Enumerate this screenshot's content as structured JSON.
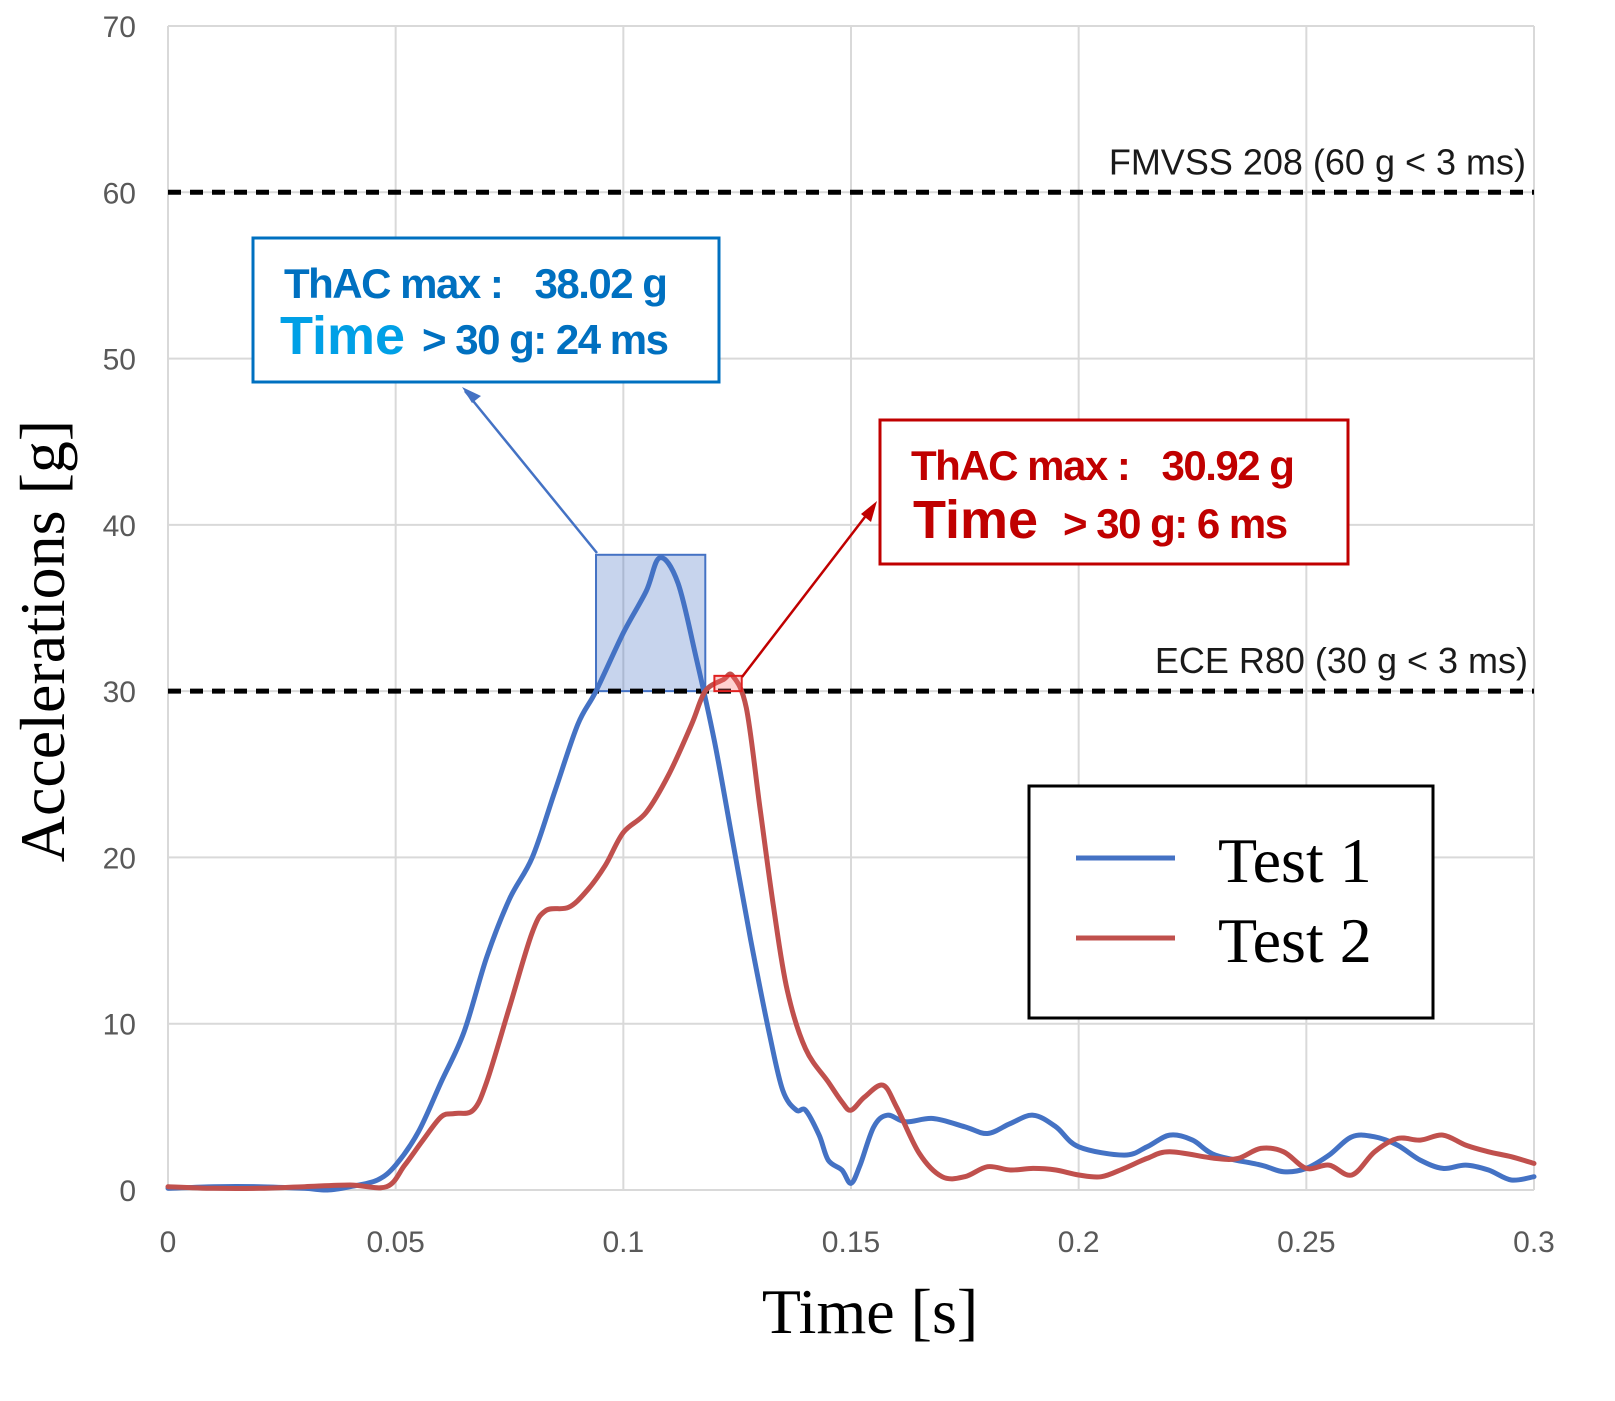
{
  "chart_data": {
    "type": "line",
    "title": "",
    "xlabel": "Time [s]",
    "ylabel": "Accelerations [g]",
    "xlim": [
      0,
      0.3
    ],
    "ylim": [
      0,
      70
    ],
    "xticks": [
      "0",
      "0.05",
      "0.1",
      "0.15",
      "0.2",
      "0.25",
      "0.3"
    ],
    "yticks": [
      "0",
      "10",
      "20",
      "30",
      "40",
      "50",
      "60",
      "70"
    ],
    "grid": true,
    "legend_position": "lower-right",
    "colors": {
      "test1": "#4472c4",
      "test2": "#c0504d",
      "blue_text": "#0070c0",
      "blue_text_light": "#00b0f0",
      "red_text": "#c00000"
    },
    "reference_lines": [
      {
        "name": "fmvss",
        "y": 60,
        "label": "FMVSS 208 (60 g < 3 ms)"
      },
      {
        "name": "ece",
        "y": 30,
        "label": "ECE R80 (30 g <  3 ms)"
      }
    ],
    "series": [
      {
        "name": "Test 1",
        "points": [
          [
            0,
            0.1
          ],
          [
            0.01,
            0.2
          ],
          [
            0.02,
            0.2
          ],
          [
            0.03,
            0.1
          ],
          [
            0.035,
            0
          ],
          [
            0.04,
            0.2
          ],
          [
            0.046,
            0.6
          ],
          [
            0.05,
            1.5
          ],
          [
            0.055,
            3.5
          ],
          [
            0.06,
            6.5
          ],
          [
            0.065,
            9.5
          ],
          [
            0.07,
            14
          ],
          [
            0.075,
            17.5
          ],
          [
            0.08,
            20
          ],
          [
            0.085,
            24
          ],
          [
            0.09,
            28
          ],
          [
            0.094,
            30
          ],
          [
            0.1,
            33.5
          ],
          [
            0.105,
            36
          ],
          [
            0.108,
            38.02
          ],
          [
            0.112,
            36.5
          ],
          [
            0.116,
            32
          ],
          [
            0.12,
            27
          ],
          [
            0.124,
            21
          ],
          [
            0.128,
            15
          ],
          [
            0.132,
            9.5
          ],
          [
            0.135,
            6
          ],
          [
            0.138,
            4.8
          ],
          [
            0.14,
            4.8
          ],
          [
            0.143,
            3.3
          ],
          [
            0.145,
            1.8
          ],
          [
            0.148,
            1.2
          ],
          [
            0.15,
            0.4
          ],
          [
            0.152,
            1.5
          ],
          [
            0.155,
            3.8
          ],
          [
            0.158,
            4.5
          ],
          [
            0.162,
            4.1
          ],
          [
            0.168,
            4.3
          ],
          [
            0.175,
            3.8
          ],
          [
            0.18,
            3.4
          ],
          [
            0.185,
            4
          ],
          [
            0.19,
            4.5
          ],
          [
            0.195,
            3.8
          ],
          [
            0.2,
            2.6
          ],
          [
            0.21,
            2.1
          ],
          [
            0.215,
            2.6
          ],
          [
            0.22,
            3.3
          ],
          [
            0.225,
            3
          ],
          [
            0.23,
            2.1
          ],
          [
            0.24,
            1.5
          ],
          [
            0.245,
            1.1
          ],
          [
            0.25,
            1.3
          ],
          [
            0.255,
            2.1
          ],
          [
            0.26,
            3.2
          ],
          [
            0.265,
            3.2
          ],
          [
            0.27,
            2.7
          ],
          [
            0.275,
            1.8
          ],
          [
            0.28,
            1.3
          ],
          [
            0.285,
            1.5
          ],
          [
            0.29,
            1.2
          ],
          [
            0.295,
            0.6
          ],
          [
            0.3,
            0.8
          ]
        ]
      },
      {
        "name": "Test 2",
        "points": [
          [
            0,
            0.2
          ],
          [
            0.01,
            0.1
          ],
          [
            0.02,
            0.1
          ],
          [
            0.03,
            0.2
          ],
          [
            0.04,
            0.3
          ],
          [
            0.048,
            0.2
          ],
          [
            0.052,
            1.5
          ],
          [
            0.056,
            3
          ],
          [
            0.06,
            4.4
          ],
          [
            0.063,
            4.6
          ],
          [
            0.067,
            4.8
          ],
          [
            0.07,
            6.5
          ],
          [
            0.075,
            11
          ],
          [
            0.08,
            15.5
          ],
          [
            0.083,
            16.8
          ],
          [
            0.088,
            17
          ],
          [
            0.092,
            18
          ],
          [
            0.096,
            19.5
          ],
          [
            0.1,
            21.5
          ],
          [
            0.105,
            22.7
          ],
          [
            0.11,
            25
          ],
          [
            0.115,
            28
          ],
          [
            0.118,
            30
          ],
          [
            0.122,
            30.7
          ],
          [
            0.124,
            30.92
          ],
          [
            0.127,
            29
          ],
          [
            0.13,
            23
          ],
          [
            0.133,
            17
          ],
          [
            0.136,
            12
          ],
          [
            0.14,
            8.5
          ],
          [
            0.145,
            6.5
          ],
          [
            0.148,
            5.3
          ],
          [
            0.15,
            4.8
          ],
          [
            0.153,
            5.6
          ],
          [
            0.157,
            6.3
          ],
          [
            0.16,
            5
          ],
          [
            0.165,
            2.2
          ],
          [
            0.17,
            0.8
          ],
          [
            0.175,
            0.8
          ],
          [
            0.18,
            1.4
          ],
          [
            0.185,
            1.2
          ],
          [
            0.19,
            1.3
          ],
          [
            0.195,
            1.2
          ],
          [
            0.2,
            0.9
          ],
          [
            0.205,
            0.8
          ],
          [
            0.21,
            1.3
          ],
          [
            0.215,
            1.9
          ],
          [
            0.22,
            2.3
          ],
          [
            0.23,
            1.9
          ],
          [
            0.235,
            1.9
          ],
          [
            0.24,
            2.5
          ],
          [
            0.245,
            2.3
          ],
          [
            0.25,
            1.3
          ],
          [
            0.255,
            1.5
          ],
          [
            0.26,
            0.9
          ],
          [
            0.265,
            2.3
          ],
          [
            0.27,
            3.1
          ],
          [
            0.275,
            3
          ],
          [
            0.28,
            3.3
          ],
          [
            0.285,
            2.7
          ],
          [
            0.29,
            2.3
          ],
          [
            0.295,
            2
          ],
          [
            0.3,
            1.6
          ]
        ]
      }
    ],
    "highlights": [
      {
        "name": "blue",
        "x": [
          0.094,
          0.118
        ],
        "y": [
          30,
          38.2
        ]
      },
      {
        "name": "red",
        "x": [
          0.12,
          0.126
        ],
        "y": [
          30,
          30.92
        ]
      }
    ],
    "annotations": {
      "blue": {
        "line1_prefix": "ThAC max :",
        "line1_value": "38.02 g",
        "line2_prefix": "Time",
        "line2_suffix": "> 30 g: 24 ms"
      },
      "red": {
        "line1_prefix": "ThAC max :",
        "line1_value": "30.92 g",
        "line2_prefix": "Time",
        "line2_suffix": "> 30 g: 6 ms"
      }
    },
    "legend": [
      "Test 1",
      "Test 2"
    ]
  }
}
